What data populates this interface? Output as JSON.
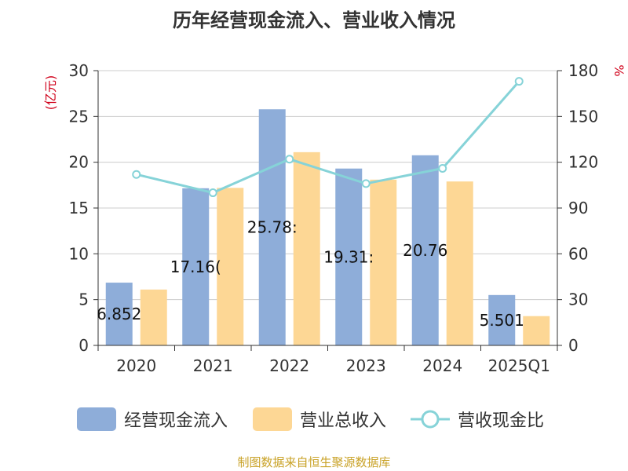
{
  "title": "历年经营现金流入、营业收入情况",
  "source": "制图数据来自恒生聚源数据库",
  "colors": {
    "inflow": "#8eadd9",
    "revenue": "#fdd795",
    "ratio": "#86d3d8",
    "axis_label": "#d0021b"
  },
  "chart_data": {
    "type": "bar",
    "title": "历年经营现金流入、营业收入情况",
    "categories": [
      "2020",
      "2021",
      "2022",
      "2023",
      "2024",
      "2025Q1"
    ],
    "y_left": {
      "label": "(亿元)",
      "min": 0,
      "max": 30,
      "ticks": [
        "0",
        "5",
        "10",
        "15",
        "20",
        "25",
        "30"
      ]
    },
    "y_right": {
      "label": "%",
      "min": 0,
      "max": 180,
      "ticks": [
        "0",
        "30",
        "60",
        "90",
        "120",
        "150",
        "180"
      ]
    },
    "grid": true,
    "legend_position": "bottom",
    "series": [
      {
        "name": "经营现金流入",
        "type": "bar",
        "axis": "left",
        "values": [
          6.852,
          17.16,
          25.78,
          19.31,
          20.76,
          5.501
        ],
        "labels": [
          "6.852",
          "17.16(",
          "25.78:",
          "19.31:",
          "20.76",
          "5.501"
        ]
      },
      {
        "name": "营业总收入",
        "type": "bar",
        "axis": "left",
        "values": [
          6.1,
          17.2,
          21.1,
          18.1,
          17.9,
          3.2
        ]
      },
      {
        "name": "营收现金比",
        "type": "line",
        "axis": "right",
        "values": [
          112,
          100,
          122,
          106,
          116,
          173
        ]
      }
    ]
  }
}
